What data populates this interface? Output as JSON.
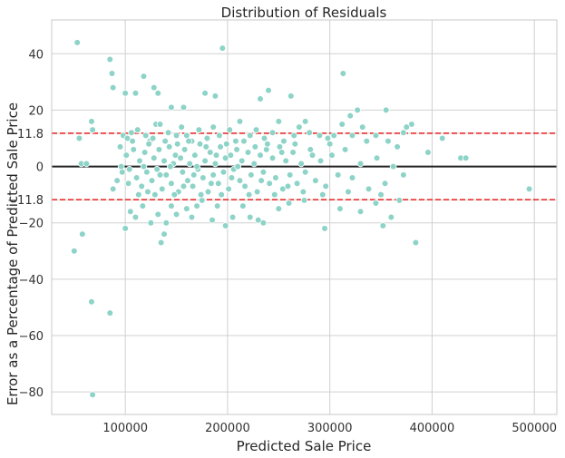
{
  "chart_data": {
    "type": "scatter",
    "title": "Distribution of Residuals",
    "xlabel": "Predicted Sale Price",
    "ylabel": "Error as a Percentage of Predicted Sale Price",
    "xlim": [
      28000,
      522000
    ],
    "ylim": [
      -88,
      52
    ],
    "x_ticks": [
      100000,
      200000,
      300000,
      400000,
      500000
    ],
    "y_ticks": [
      40,
      20,
      11.8,
      0,
      -11.8,
      -20,
      -40,
      -60,
      -80
    ],
    "grid": true,
    "point_color": "#8dd3c7",
    "zero_line": {
      "y": 0,
      "color": "#222222"
    },
    "threshold_lines": [
      {
        "y": 11.8,
        "color": "#e8302e",
        "style": "dashed"
      },
      {
        "y": -11.8,
        "color": "#e8302e",
        "style": "dashed"
      }
    ],
    "points": [
      [
        53000,
        44
      ],
      [
        85000,
        38
      ],
      [
        87000,
        33
      ],
      [
        88000,
        28
      ],
      [
        118000,
        32
      ],
      [
        100000,
        26
      ],
      [
        110000,
        26
      ],
      [
        128000,
        28
      ],
      [
        132000,
        26
      ],
      [
        145000,
        21
      ],
      [
        157000,
        21
      ],
      [
        178000,
        26
      ],
      [
        188000,
        25
      ],
      [
        195000,
        42
      ],
      [
        232000,
        24
      ],
      [
        240000,
        27
      ],
      [
        262000,
        25
      ],
      [
        313000,
        33
      ],
      [
        320000,
        18
      ],
      [
        327000,
        20
      ],
      [
        355000,
        20
      ],
      [
        380000,
        15
      ],
      [
        375000,
        14
      ],
      [
        67000,
        16
      ],
      [
        68000,
        13
      ],
      [
        55000,
        10
      ],
      [
        57000,
        1
      ],
      [
        62000,
        1
      ],
      [
        50000,
        -30
      ],
      [
        58000,
        -24
      ],
      [
        67000,
        -48
      ],
      [
        85000,
        -52
      ],
      [
        68000,
        -81
      ],
      [
        100000,
        -22
      ],
      [
        105000,
        -16
      ],
      [
        110000,
        -18
      ],
      [
        117000,
        -14
      ],
      [
        125000,
        -20
      ],
      [
        132000,
        -17
      ],
      [
        135000,
        -27
      ],
      [
        138000,
        -24
      ],
      [
        140000,
        -20
      ],
      [
        145000,
        -14
      ],
      [
        150000,
        -17
      ],
      [
        160000,
        -15
      ],
      [
        165000,
        -18
      ],
      [
        170000,
        -14
      ],
      [
        175000,
        -12
      ],
      [
        185000,
        -19
      ],
      [
        190000,
        -14
      ],
      [
        198000,
        -21
      ],
      [
        205000,
        -18
      ],
      [
        215000,
        -14
      ],
      [
        222000,
        -18
      ],
      [
        230000,
        -19
      ],
      [
        235000,
        -20
      ],
      [
        250000,
        -15
      ],
      [
        260000,
        -13
      ],
      [
        275000,
        -12
      ],
      [
        295000,
        -22
      ],
      [
        310000,
        -15
      ],
      [
        330000,
        -16
      ],
      [
        345000,
        -13
      ],
      [
        352000,
        -21
      ],
      [
        360000,
        -18
      ],
      [
        368000,
        -12
      ],
      [
        384000,
        -27
      ],
      [
        98000,
        11
      ],
      [
        102000,
        10
      ],
      [
        106000,
        12
      ],
      [
        112000,
        13
      ],
      [
        120000,
        11
      ],
      [
        124000,
        9
      ],
      [
        130000,
        15
      ],
      [
        134000,
        15
      ],
      [
        142000,
        12
      ],
      [
        150000,
        11
      ],
      [
        155000,
        14
      ],
      [
        160000,
        11
      ],
      [
        165000,
        9
      ],
      [
        172000,
        13
      ],
      [
        180000,
        10
      ],
      [
        186000,
        14
      ],
      [
        192000,
        11
      ],
      [
        202000,
        13
      ],
      [
        208000,
        9
      ],
      [
        212000,
        16
      ],
      [
        222000,
        11
      ],
      [
        228000,
        13
      ],
      [
        236000,
        10
      ],
      [
        244000,
        12
      ],
      [
        250000,
        16
      ],
      [
        255000,
        9
      ],
      [
        265000,
        11
      ],
      [
        270000,
        14
      ],
      [
        276000,
        16
      ],
      [
        280000,
        12
      ],
      [
        290000,
        11
      ],
      [
        298000,
        10
      ],
      [
        304000,
        11
      ],
      [
        312000,
        15
      ],
      [
        322000,
        11
      ],
      [
        332000,
        14
      ],
      [
        345000,
        11
      ],
      [
        357000,
        9
      ],
      [
        366000,
        7
      ],
      [
        372000,
        12
      ],
      [
        396000,
        5
      ],
      [
        410000,
        10
      ],
      [
        428000,
        3
      ],
      [
        433000,
        3
      ],
      [
        495000,
        -8
      ],
      [
        88000,
        -8
      ],
      [
        92000,
        -5
      ],
      [
        95000,
        7
      ],
      [
        97000,
        -2
      ],
      [
        101000,
        4
      ],
      [
        104000,
        -1
      ],
      [
        108000,
        6
      ],
      [
        111000,
        -4
      ],
      [
        114000,
        2
      ],
      [
        116000,
        -7
      ],
      [
        119000,
        5
      ],
      [
        121000,
        -2
      ],
      [
        123000,
        8
      ],
      [
        126000,
        -5
      ],
      [
        128000,
        3
      ],
      [
        131000,
        -1
      ],
      [
        133000,
        6
      ],
      [
        136000,
        -8
      ],
      [
        138000,
        2
      ],
      [
        140000,
        -3
      ],
      [
        143000,
        7
      ],
      [
        145000,
        -6
      ],
      [
        147000,
        1
      ],
      [
        149000,
        4
      ],
      [
        152000,
        -9
      ],
      [
        154000,
        3
      ],
      [
        156000,
        -2
      ],
      [
        158000,
        6
      ],
      [
        161000,
        -5
      ],
      [
        163000,
        1
      ],
      [
        166000,
        -7
      ],
      [
        168000,
        4
      ],
      [
        171000,
        -1
      ],
      [
        173000,
        8
      ],
      [
        176000,
        -4
      ],
      [
        178000,
        2
      ],
      [
        181000,
        -9
      ],
      [
        183000,
        5
      ],
      [
        186000,
        -3
      ],
      [
        188000,
        1
      ],
      [
        191000,
        -6
      ],
      [
        193000,
        7
      ],
      [
        196000,
        -2
      ],
      [
        198000,
        3
      ],
      [
        201000,
        -8
      ],
      [
        203000,
        4
      ],
      [
        206000,
        -1
      ],
      [
        209000,
        6
      ],
      [
        212000,
        -5
      ],
      [
        214000,
        2
      ],
      [
        217000,
        -7
      ],
      [
        220000,
        5
      ],
      [
        223000,
        -3
      ],
      [
        226000,
        1
      ],
      [
        229000,
        -9
      ],
      [
        232000,
        4
      ],
      [
        235000,
        -2
      ],
      [
        238000,
        6
      ],
      [
        241000,
        -6
      ],
      [
        244000,
        3
      ],
      [
        247000,
        -4
      ],
      [
        251000,
        7
      ],
      [
        254000,
        -8
      ],
      [
        257000,
        2
      ],
      [
        261000,
        -3
      ],
      [
        264000,
        5
      ],
      [
        268000,
        -6
      ],
      [
        272000,
        1
      ],
      [
        276000,
        -2
      ],
      [
        281000,
        6
      ],
      [
        286000,
        -5
      ],
      [
        291000,
        2
      ],
      [
        296000,
        -7
      ],
      [
        302000,
        4
      ],
      [
        308000,
        -3
      ],
      [
        315000,
        6
      ],
      [
        322000,
        -4
      ],
      [
        330000,
        1
      ],
      [
        338000,
        -8
      ],
      [
        346000,
        3
      ],
      [
        354000,
        -6
      ],
      [
        362000,
        0
      ],
      [
        372000,
        -3
      ],
      [
        96000,
        0
      ],
      [
        103000,
        -6
      ],
      [
        107000,
        9
      ],
      [
        113000,
        -10
      ],
      [
        118000,
        0
      ],
      [
        122000,
        -9
      ],
      [
        127000,
        10
      ],
      [
        129000,
        -10
      ],
      [
        134000,
        -3
      ],
      [
        139000,
        9
      ],
      [
        144000,
        0
      ],
      [
        148000,
        -10
      ],
      [
        151000,
        8
      ],
      [
        157000,
        -7
      ],
      [
        162000,
        9
      ],
      [
        167000,
        -3
      ],
      [
        170000,
        0
      ],
      [
        174000,
        -10
      ],
      [
        179000,
        7
      ],
      [
        184000,
        -6
      ],
      [
        189000,
        4
      ],
      [
        194000,
        -10
      ],
      [
        199000,
        8
      ],
      [
        204000,
        -4
      ],
      [
        210000,
        0
      ],
      [
        216000,
        9
      ],
      [
        221000,
        -10
      ],
      [
        227000,
        7
      ],
      [
        233000,
        -5
      ],
      [
        239000,
        8
      ],
      [
        246000,
        -10
      ],
      [
        253000,
        5
      ],
      [
        259000,
        -7
      ],
      [
        266000,
        8
      ],
      [
        274000,
        -9
      ],
      [
        283000,
        4
      ],
      [
        293000,
        -10
      ],
      [
        300000,
        8
      ],
      [
        318000,
        -9
      ],
      [
        336000,
        9
      ],
      [
        350000,
        -10
      ]
    ]
  }
}
